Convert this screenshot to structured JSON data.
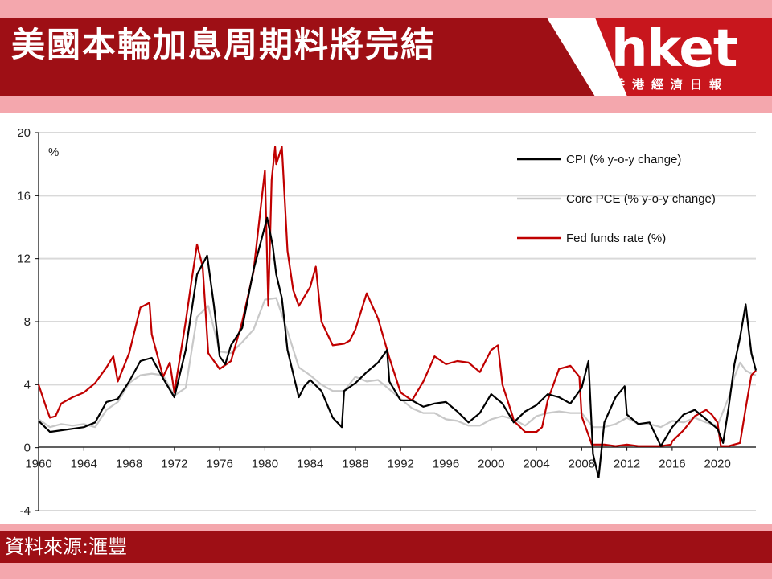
{
  "header": {
    "title": "美國本輪加息周期料將完結",
    "logo": "hket",
    "logo_sub": "香港經濟日報"
  },
  "footer": {
    "source": "資料來源:滙豐"
  },
  "colors": {
    "brand_red": "#9e0f15",
    "stripe_pink": "#f4a7ad",
    "cpi": "#000000",
    "core_pce": "#c8c8c8",
    "fed_funds": "#c00000"
  },
  "chart_data": {
    "type": "line",
    "unit_label": "%",
    "xlim": [
      1960,
      2023.4
    ],
    "ylim": [
      -4,
      20
    ],
    "yticks": [
      -4,
      0,
      4,
      8,
      12,
      16,
      20
    ],
    "xticks": [
      1960,
      1964,
      1968,
      1972,
      1976,
      1980,
      1984,
      1988,
      1992,
      1996,
      2000,
      2004,
      2008,
      2012,
      2016,
      2020
    ],
    "grid": "horizontal",
    "legend_position": "top-right",
    "series": [
      {
        "name": "CPI (% y-o-y change)",
        "color": "#000000",
        "x": [
          1960,
          1961,
          1962,
          1963,
          1964,
          1965,
          1966,
          1967,
          1968,
          1969,
          1970,
          1971,
          1972,
          1973,
          1974,
          1974.9,
          1975.5,
          1976,
          1976.5,
          1977,
          1978,
          1979,
          1980.2,
          1980.7,
          1981,
          1981.5,
          1982,
          1983,
          1983.5,
          1984,
          1985,
          1986,
          1986.8,
          1987,
          1988,
          1989,
          1990,
          1990.8,
          1991,
          1992,
          1993,
          1994,
          1995,
          1996,
          1997,
          1998,
          1999,
          2000,
          2001,
          2002,
          2003,
          2004,
          2005,
          2006,
          2007,
          2008,
          2008.6,
          2009,
          2009.5,
          2010,
          2011,
          2011.8,
          2012,
          2013,
          2014,
          2015,
          2016,
          2017,
          2018,
          2019,
          2020,
          2020.5,
          2021,
          2021.5,
          2022,
          2022.5,
          2023,
          2023.4
        ],
        "values": [
          1.7,
          1.0,
          1.1,
          1.2,
          1.3,
          1.6,
          2.9,
          3.1,
          4.2,
          5.5,
          5.7,
          4.4,
          3.2,
          6.2,
          11.0,
          12.2,
          9.0,
          5.8,
          5.3,
          6.5,
          7.6,
          11.3,
          14.6,
          12.8,
          11.0,
          9.5,
          6.2,
          3.2,
          3.9,
          4.3,
          3.6,
          1.9,
          1.3,
          3.6,
          4.1,
          4.8,
          5.4,
          6.2,
          4.2,
          3.0,
          3.0,
          2.6,
          2.8,
          2.9,
          2.3,
          1.6,
          2.2,
          3.4,
          2.8,
          1.6,
          2.3,
          2.7,
          3.4,
          3.2,
          2.8,
          3.8,
          5.5,
          -0.4,
          -1.9,
          1.6,
          3.2,
          3.9,
          2.1,
          1.5,
          1.6,
          0.1,
          1.3,
          2.1,
          2.4,
          1.8,
          1.2,
          0.3,
          2.6,
          5.3,
          7.0,
          9.1,
          6.0,
          4.9
        ]
      },
      {
        "name": "Core PCE (% y-o-y change)",
        "color": "#c8c8c8",
        "x": [
          1960,
          1961,
          1962,
          1963,
          1964,
          1965,
          1966,
          1967,
          1968,
          1969,
          1970,
          1971,
          1972,
          1973,
          1974,
          1975,
          1976,
          1977,
          1978,
          1979,
          1980,
          1981,
          1982,
          1983,
          1984,
          1985,
          1986,
          1987,
          1988,
          1989,
          1990,
          1991,
          1992,
          1993,
          1994,
          1995,
          1996,
          1997,
          1998,
          1999,
          2000,
          2001,
          2002,
          2003,
          2004,
          2005,
          2006,
          2007,
          2008,
          2009,
          2010,
          2011,
          2012,
          2013,
          2014,
          2015,
          2016,
          2017,
          2018,
          2019,
          2020,
          2021,
          2021.5,
          2022,
          2022.5,
          2023,
          2023.4
        ],
        "values": [
          1.8,
          1.3,
          1.5,
          1.4,
          1.5,
          1.3,
          2.4,
          2.9,
          4.1,
          4.6,
          4.7,
          4.6,
          3.3,
          3.8,
          8.3,
          9.0,
          6.1,
          6.0,
          6.7,
          7.5,
          9.4,
          9.5,
          7.4,
          5.1,
          4.6,
          4.0,
          3.6,
          3.6,
          4.5,
          4.2,
          4.3,
          3.7,
          3.1,
          2.5,
          2.2,
          2.2,
          1.8,
          1.7,
          1.4,
          1.4,
          1.8,
          2.0,
          1.8,
          1.4,
          2.0,
          2.2,
          2.3,
          2.2,
          2.2,
          1.3,
          1.3,
          1.5,
          1.9,
          1.5,
          1.5,
          1.3,
          1.7,
          1.6,
          1.9,
          1.6,
          1.4,
          3.2,
          4.5,
          5.4,
          4.9,
          4.7,
          4.6
        ]
      },
      {
        "name": "Fed funds rate (%)",
        "color": "#c00000",
        "x": [
          1960,
          1960.7,
          1961,
          1961.5,
          1962,
          1963,
          1964,
          1965,
          1966,
          1966.6,
          1967,
          1968,
          1969,
          1969.8,
          1970,
          1971,
          1971.6,
          1972,
          1973,
          1973.5,
          1974,
          1974.5,
          1975,
          1976,
          1977,
          1978,
          1979,
          1980,
          1980.3,
          1980.6,
          1980.9,
          1981,
          1981.5,
          1982,
          1982.5,
          1983,
          1984,
          1984.5,
          1985,
          1986,
          1987,
          1987.5,
          1988,
          1989,
          1990,
          1991,
          1992,
          1993,
          1994,
          1995,
          1996,
          1997,
          1998,
          1999,
          2000,
          2000.6,
          2001,
          2001.9,
          2002,
          2003,
          2004,
          2004.5,
          2005,
          2006,
          2007,
          2007.8,
          2008,
          2008.9,
          2009,
          2010,
          2011,
          2012,
          2013,
          2014,
          2015,
          2015.9,
          2016,
          2017,
          2018,
          2019,
          2019.5,
          2020,
          2020.3,
          2021,
          2022,
          2022.5,
          2023,
          2023.4
        ],
        "values": [
          4.0,
          2.5,
          1.9,
          2.0,
          2.8,
          3.2,
          3.5,
          4.1,
          5.1,
          5.8,
          4.2,
          6.0,
          8.9,
          9.2,
          7.2,
          4.5,
          5.4,
          3.5,
          8.0,
          10.5,
          12.9,
          11.5,
          6.0,
          5.0,
          5.5,
          8.0,
          11.2,
          17.6,
          9.0,
          17.0,
          19.1,
          18.0,
          19.1,
          12.5,
          10.0,
          9.0,
          10.2,
          11.5,
          8.0,
          6.5,
          6.6,
          6.8,
          7.5,
          9.8,
          8.2,
          5.7,
          3.5,
          3.0,
          4.2,
          5.8,
          5.3,
          5.5,
          5.4,
          4.8,
          6.2,
          6.5,
          4.0,
          2.0,
          1.7,
          1.0,
          1.0,
          1.3,
          3.0,
          5.0,
          5.2,
          4.5,
          2.0,
          0.2,
          0.2,
          0.2,
          0.1,
          0.2,
          0.1,
          0.1,
          0.1,
          0.2,
          0.4,
          1.1,
          2.0,
          2.4,
          2.1,
          1.6,
          0.1,
          0.1,
          0.3,
          2.5,
          4.6,
          4.9
        ]
      }
    ]
  }
}
